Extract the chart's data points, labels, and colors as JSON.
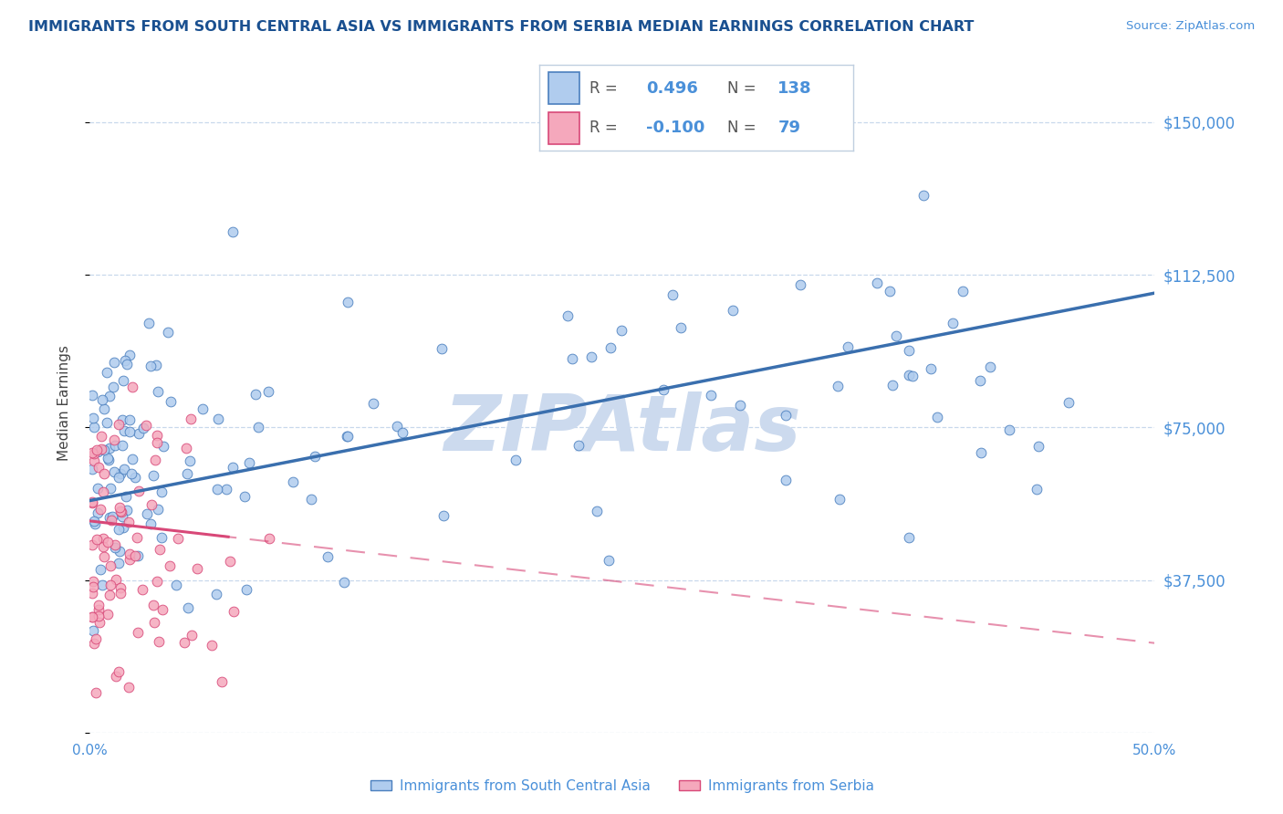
{
  "title": "IMMIGRANTS FROM SOUTH CENTRAL ASIA VS IMMIGRANTS FROM SERBIA MEDIAN EARNINGS CORRELATION CHART",
  "source": "Source: ZipAtlas.com",
  "ylabel": "Median Earnings",
  "xlim": [
    0.0,
    0.5
  ],
  "ylim": [
    0,
    162000
  ],
  "yticks": [
    0,
    37500,
    75000,
    112500,
    150000
  ],
  "ytick_labels": [
    "",
    "$37,500",
    "$75,000",
    "$112,500",
    "$150,000"
  ],
  "xticks": [
    0.0,
    0.1,
    0.2,
    0.3,
    0.4,
    0.5
  ],
  "xtick_labels": [
    "0.0%",
    "",
    "",
    "",
    "",
    "50.0%"
  ],
  "series1_label": "Immigrants from South Central Asia",
  "series2_label": "Immigrants from Serbia",
  "R1": 0.496,
  "N1": 138,
  "R2": -0.1,
  "N2": 79,
  "color1": "#b0ccee",
  "color2": "#f5a8bc",
  "edge_color1": "#4a7fbe",
  "edge_color2": "#d84878",
  "line_color1": "#3a6fae",
  "line_color2": "#d84878",
  "title_color": "#1a5090",
  "ylabel_color": "#444444",
  "tick_color": "#4a90d9",
  "source_color": "#4a90d9",
  "background_color": "#ffffff",
  "watermark": "ZIPAtlas",
  "watermark_color": "#ccdaee",
  "grid_color": "#c8d8ec",
  "legend_border_color": "#c0cfe0"
}
